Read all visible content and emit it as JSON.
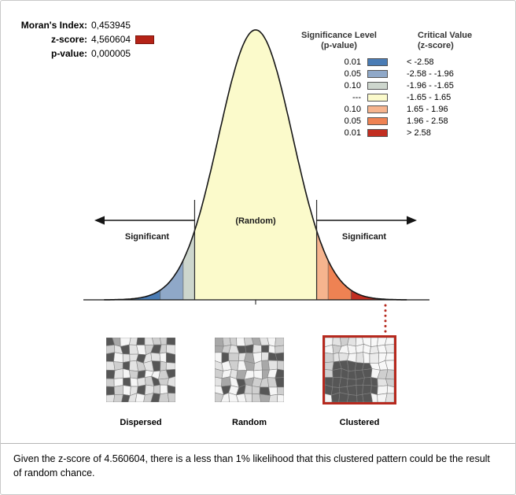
{
  "report": {
    "morans_index_label": "Moran's Index:",
    "morans_index_value": "0,453945",
    "z_score_label": "z-score:",
    "z_score_value": "4,560604",
    "z_swatch_color": "#b52317",
    "p_value_label": "p-value:",
    "p_value_value": "0,000005"
  },
  "legend": {
    "sig_header_line1": "Significance Level",
    "sig_header_line2": "(p-value)",
    "crit_header_line1": "Critical Value",
    "crit_header_line2": "(z-score)",
    "rows": [
      {
        "p": "0.01",
        "color": "#4a7cb5",
        "z": "< -2.58"
      },
      {
        "p": "0.05",
        "color": "#8fa8c8",
        "z": "-2.58 - -1.96"
      },
      {
        "p": "0.10",
        "color": "#cdd6cd",
        "z": "-1.96 - -1.65"
      },
      {
        "p": "---",
        "color": "#fbfacb",
        "z": "-1.65 - 1.65"
      },
      {
        "p": "0.10",
        "color": "#f6b48e",
        "z": "1.65 - 1.96"
      },
      {
        "p": "0.05",
        "color": "#ee8253",
        "z": "1.96 - 2.58"
      },
      {
        "p": "0.01",
        "color": "#c22e21",
        "z": "> 2.58"
      }
    ]
  },
  "curve": {
    "random_label": "(Random)",
    "significant_left_label": "Significant",
    "significant_right_label": "Significant",
    "boundaries_z": [
      -2.58,
      -1.96,
      -1.65,
      1.65,
      1.96,
      2.58
    ],
    "dotted_line_color": "#b6291e"
  },
  "maps": [
    {
      "label": "Dispersed",
      "pattern": "dispersed"
    },
    {
      "label": "Random",
      "pattern": "random"
    },
    {
      "label": "Clustered",
      "pattern": "clustered",
      "highlight": true
    }
  ],
  "footer": {
    "text": "Given the z-score of 4.560604, there is a less than 1% likelihood that this clustered pattern could be the result of random chance."
  },
  "chart_data": {
    "type": "area",
    "title": "Spatial Autocorrelation (Moran's I) significance bell curve",
    "distribution": "standard normal",
    "x_label": "z-score",
    "x_range": [
      -4,
      4
    ],
    "regions": [
      {
        "z_range": "< -2.58",
        "p_value": "0.01",
        "color": "#4a7cb5"
      },
      {
        "z_range": "-2.58 - -1.96",
        "p_value": "0.05",
        "color": "#8fa8c8"
      },
      {
        "z_range": "-1.96 - -1.65",
        "p_value": "0.10",
        "color": "#cdd6cd"
      },
      {
        "z_range": "-1.65 - 1.65",
        "p_value": "---",
        "color": "#fbfacb"
      },
      {
        "z_range": "1.65 - 1.96",
        "p_value": "0.10",
        "color": "#f6b48e"
      },
      {
        "z_range": "1.96 - 2.58",
        "p_value": "0.05",
        "color": "#ee8253"
      },
      {
        "z_range": "> 2.58",
        "p_value": "0.01",
        "color": "#c22e21"
      }
    ],
    "annotations": [
      "Significant",
      "(Random)",
      "Significant"
    ],
    "observed": {
      "morans_index": 0.453945,
      "z_score": 4.560604,
      "p_value": 5e-06
    },
    "pattern_examples": [
      "Dispersed",
      "Random",
      "Clustered"
    ]
  }
}
